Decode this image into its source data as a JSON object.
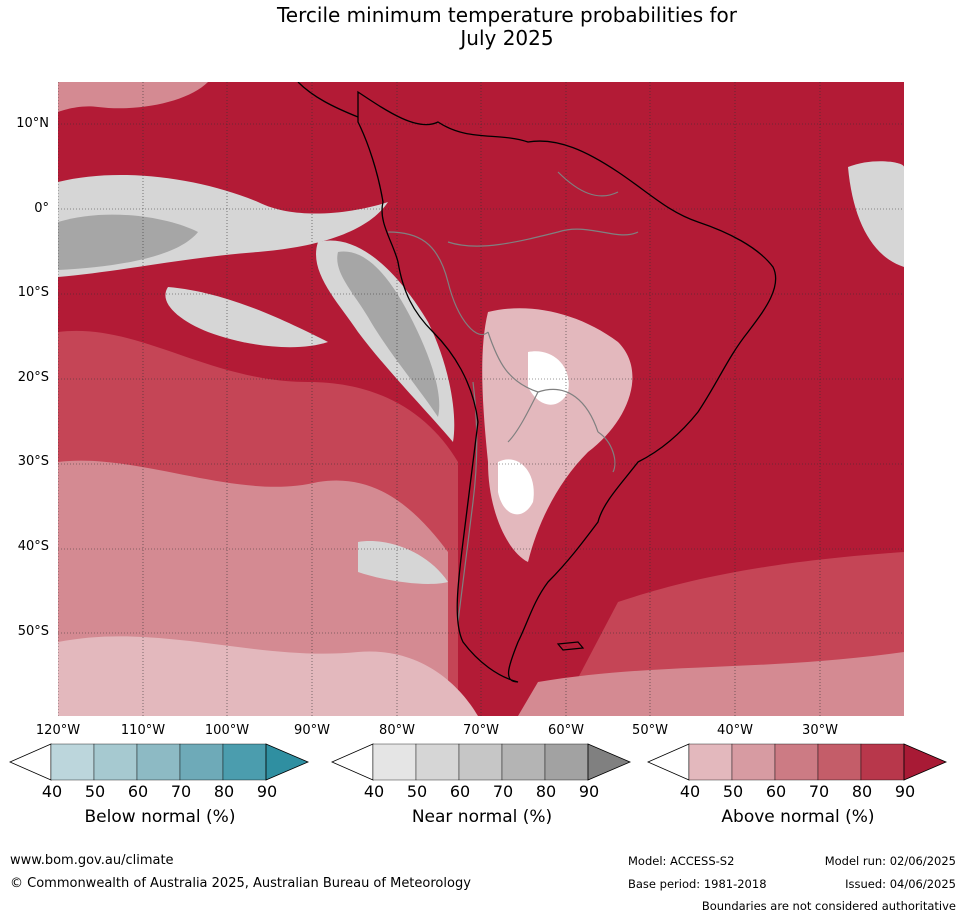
{
  "title": {
    "line1": "Tercile minimum temperature probabilities for",
    "line2": "July 2025"
  },
  "map": {
    "lat_labels": [
      "10°N",
      "0°",
      "10°S",
      "20°S",
      "30°S",
      "40°S",
      "50°S"
    ],
    "lon_labels": [
      "120°W",
      "110°W",
      "100°W",
      "90°W",
      "80°W",
      "70°W",
      "60°W",
      "50°W",
      "40°W",
      "30°W"
    ],
    "colors": {
      "above_dark": "#b31b36",
      "above_mid": "#c54556",
      "above_light": "#d48a92",
      "above_pale": "#e3b8bd",
      "near": "#a6a6a6",
      "near_light": "#d6d6d6",
      "below": "#a9cfd6",
      "coast": "#000000",
      "border": "#808080",
      "grid": "#333333"
    }
  },
  "legend": {
    "ticks": [
      "40",
      "50",
      "60",
      "70",
      "80",
      "90"
    ],
    "below": {
      "title": "Below normal (%)",
      "colors": [
        "#bcd6dc",
        "#a6c9d0",
        "#8dbac4",
        "#6eaab8",
        "#4b9dae",
        "#2f8fa1"
      ]
    },
    "near": {
      "title": "Near normal (%)",
      "colors": [
        "#e5e5e5",
        "#d6d6d6",
        "#c6c6c6",
        "#b4b4b4",
        "#a2a2a2",
        "#808080"
      ]
    },
    "above": {
      "title": "Above normal (%)",
      "colors": [
        "#e3b8bd",
        "#d79ba2",
        "#cc7b84",
        "#c45d69",
        "#b8374b",
        "#a81a35"
      ]
    }
  },
  "footer": {
    "url": "www.bom.gov.au/climate",
    "copyright": "© Commonwealth of Australia 2025, Australian Bureau of Meteorology",
    "model": "Model: ACCESS-S2",
    "model_run": "Model run: 02/06/2025",
    "base_period": "Base period: 1981-2018",
    "issued": "Issued: 04/06/2025",
    "disclaimer": "Boundaries are not considered authoritative"
  }
}
